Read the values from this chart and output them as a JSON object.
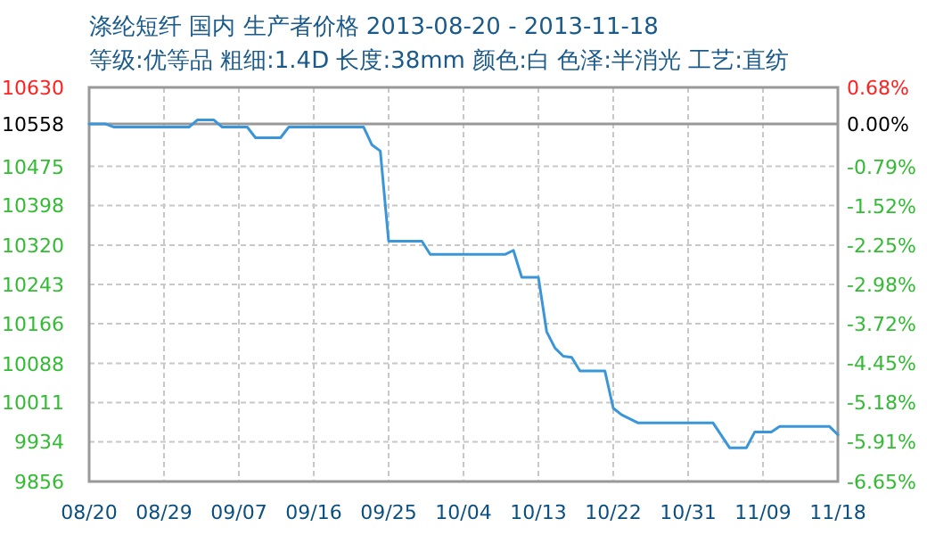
{
  "chart_data": {
    "type": "line",
    "title": "涤纶短纤 国内 生产者价格 2013-08-20 - 2013-11-18",
    "subtitle": "等级:优等品 粗细:1.4D 长度:38mm 颜色:白 色泽:半消光 工艺:直纺",
    "x": [
      "2013-08-20",
      "2013-08-21",
      "2013-08-22",
      "2013-08-23",
      "2013-09-01",
      "2013-09-02",
      "2013-09-04",
      "2013-09-05",
      "2013-09-08",
      "2013-09-09",
      "2013-09-12",
      "2013-09-13",
      "2013-09-22",
      "2013-09-23",
      "2013-09-24",
      "2013-09-25",
      "2013-09-29",
      "2013-09-30",
      "2013-10-09",
      "2013-10-10",
      "2013-10-11",
      "2013-10-13",
      "2013-10-14",
      "2013-10-15",
      "2013-10-16",
      "2013-10-17",
      "2013-10-18",
      "2013-10-21",
      "2013-10-22",
      "2013-10-23",
      "2013-10-25",
      "2013-11-03",
      "2013-11-05",
      "2013-11-07",
      "2013-11-08",
      "2013-11-10",
      "2013-11-11",
      "2013-11-17",
      "2013-11-18"
    ],
    "series": [
      {
        "color": "#3a96d8",
        "values": [
          10558,
          10558,
          10558,
          10552,
          10552,
          10566,
          10566,
          10552,
          10552,
          10531,
          10531,
          10552,
          10552,
          10517,
          10505,
          10328,
          10328,
          10302,
          10302,
          10310,
          10257,
          10257,
          10150,
          10118,
          10102,
          10100,
          10073,
          10073,
          10000,
          9987,
          9971,
          9971,
          9922,
          9922,
          9953,
          9953,
          9964,
          9964,
          9948
        ]
      }
    ],
    "xlim": [
      "2013-08-20",
      "2013-11-18"
    ],
    "xticks": [
      {
        "value": "2013-08-20",
        "label": "08/20"
      },
      {
        "value": "2013-08-29",
        "label": "08/29"
      },
      {
        "value": "2013-09-07",
        "label": "09/07"
      },
      {
        "value": "2013-09-16",
        "label": "09/16"
      },
      {
        "value": "2013-09-25",
        "label": "09/25"
      },
      {
        "value": "2013-10-04",
        "label": "10/04"
      },
      {
        "value": "2013-10-13",
        "label": "10/13"
      },
      {
        "value": "2013-10-22",
        "label": "10/22"
      },
      {
        "value": "2013-10-31",
        "label": "10/31"
      },
      {
        "value": "2013-11-09",
        "label": "11/09"
      },
      {
        "value": "2013-11-18",
        "label": "11/18"
      }
    ],
    "ylim": [
      9856,
      10630
    ],
    "yticks": [
      9856,
      9934,
      10011,
      10088,
      10166,
      10243,
      10320,
      10398,
      10475,
      10558,
      10630
    ],
    "y2lim": [
      -6.65,
      0.68
    ],
    "y2ticks": [
      {
        "value": -6.65,
        "label": "-6.65%"
      },
      {
        "value": -5.91,
        "label": "-5.91%"
      },
      {
        "value": -5.18,
        "label": "-5.18%"
      },
      {
        "value": -4.45,
        "label": "-4.45%"
      },
      {
        "value": -3.72,
        "label": "-3.72%"
      },
      {
        "value": -2.98,
        "label": "-2.98%"
      },
      {
        "value": -2.25,
        "label": "-2.25%"
      },
      {
        "value": -1.52,
        "label": "-1.52%"
      },
      {
        "value": -0.79,
        "label": "-0.79%"
      },
      {
        "value": 0,
        "label": "0.00%"
      },
      {
        "value": 0.68,
        "label": "0.68%"
      }
    ],
    "grid": true,
    "ref_lines": [
      {
        "axis": "y",
        "value": 10558,
        "color": "#999999"
      }
    ]
  }
}
